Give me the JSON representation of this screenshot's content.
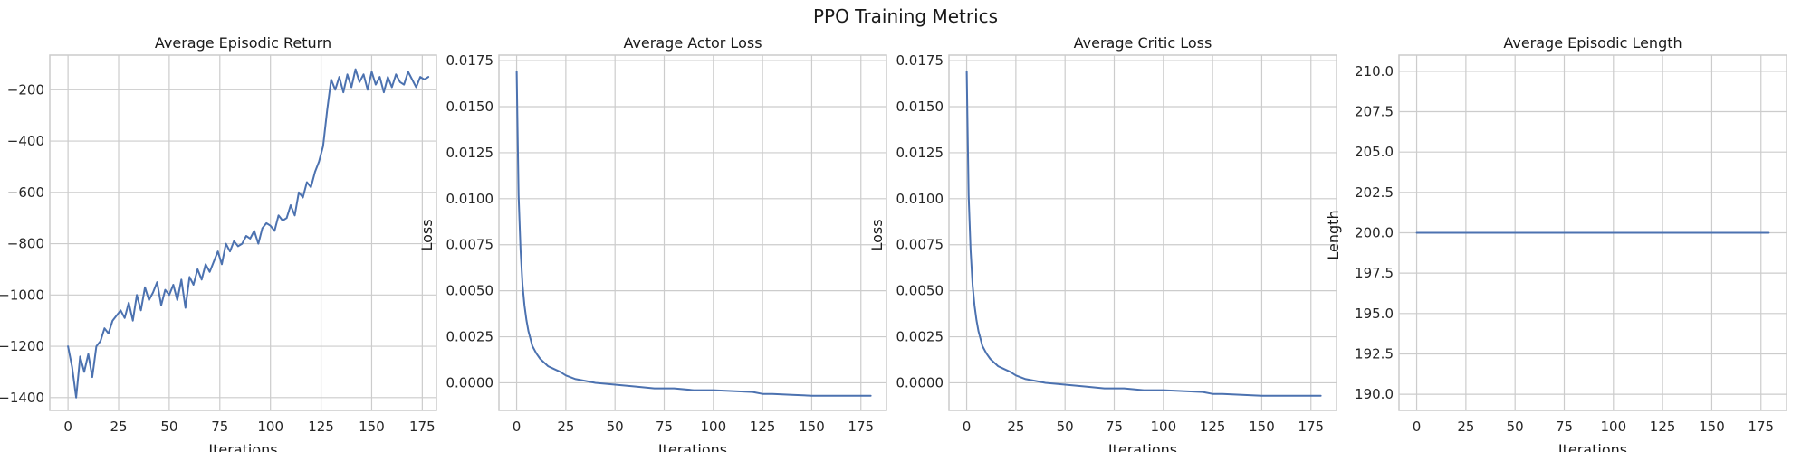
{
  "figure": {
    "title": "PPO Training Metrics",
    "line_color": "#4c72b0",
    "grid_color": "#cccccc"
  },
  "chart_data": [
    {
      "type": "line",
      "title": "Average Episodic Return",
      "xlabel": "Iterations",
      "ylabel": "",
      "xlim": [
        -9,
        182
      ],
      "ylim": [
        -1450,
        -65
      ],
      "xticks": [
        0,
        25,
        50,
        75,
        100,
        125,
        150,
        175
      ],
      "yticks": [
        -1400,
        -1200,
        -1000,
        -800,
        -600,
        -400,
        -200
      ],
      "ytick_labels": [
        "−1400",
        "−1200",
        "−1000",
        "−800",
        "−600",
        "−400",
        "−200"
      ],
      "grid": true,
      "series": [
        {
          "x": [
            0,
            2,
            4,
            6,
            8,
            10,
            12,
            14,
            16,
            18,
            20,
            22,
            24,
            26,
            28,
            30,
            32,
            34,
            36,
            38,
            40,
            42,
            44,
            46,
            48,
            50,
            52,
            54,
            56,
            58,
            60,
            62,
            64,
            66,
            68,
            70,
            72,
            74,
            76,
            78,
            80,
            82,
            84,
            86,
            88,
            90,
            92,
            94,
            96,
            98,
            100,
            102,
            104,
            106,
            108,
            110,
            112,
            114,
            116,
            118,
            120,
            122,
            124,
            126,
            128,
            130,
            132,
            134,
            136,
            138,
            140,
            142,
            144,
            146,
            148,
            150,
            152,
            154,
            156,
            158,
            160,
            162,
            164,
            166,
            168,
            170,
            172,
            174,
            176,
            178
          ],
          "y": [
            -1200,
            -1280,
            -1400,
            -1240,
            -1300,
            -1230,
            -1320,
            -1200,
            -1180,
            -1130,
            -1150,
            -1100,
            -1080,
            -1060,
            -1090,
            -1030,
            -1100,
            -1000,
            -1060,
            -970,
            -1020,
            -990,
            -950,
            -1040,
            -980,
            -1000,
            -960,
            -1020,
            -940,
            -1050,
            -930,
            -960,
            -900,
            -940,
            -880,
            -910,
            -870,
            -830,
            -880,
            -800,
            -830,
            -790,
            -810,
            -800,
            -770,
            -780,
            -750,
            -800,
            -740,
            -720,
            -730,
            -750,
            -690,
            -710,
            -700,
            -650,
            -690,
            -600,
            -620,
            -560,
            -580,
            -520,
            -480,
            -420,
            -280,
            -160,
            -200,
            -150,
            -210,
            -140,
            -190,
            -120,
            -170,
            -140,
            -200,
            -130,
            -180,
            -150,
            -210,
            -150,
            -190,
            -140,
            -170,
            -180,
            -130,
            -160,
            -190,
            -150,
            -160,
            -150
          ]
        }
      ]
    },
    {
      "type": "line",
      "title": "Average Actor Loss",
      "xlabel": "Iterations",
      "ylabel": "Loss",
      "xlim": [
        -9,
        188
      ],
      "ylim": [
        -0.0015,
        0.0178
      ],
      "xticks": [
        0,
        25,
        50,
        75,
        100,
        125,
        150,
        175
      ],
      "yticks": [
        0,
        0.0025,
        0.005,
        0.0075,
        0.01,
        0.0125,
        0.015,
        0.0175
      ],
      "ytick_labels": [
        "0.0000",
        "0.0025",
        "0.0050",
        "0.0075",
        "0.0100",
        "0.0125",
        "0.0150",
        "0.0175"
      ],
      "grid": true,
      "series": [
        {
          "x": [
            0,
            1,
            2,
            3,
            4,
            5,
            6,
            7,
            8,
            9,
            10,
            12,
            14,
            16,
            18,
            20,
            22,
            25,
            30,
            35,
            40,
            50,
            60,
            70,
            80,
            90,
            100,
            110,
            120,
            125,
            130,
            140,
            150,
            160,
            170,
            175,
            180
          ],
          "y": [
            0.0169,
            0.0102,
            0.0072,
            0.0053,
            0.0042,
            0.0034,
            0.0028,
            0.0024,
            0.002,
            0.0018,
            0.0016,
            0.0013,
            0.0011,
            0.0009,
            0.0008,
            0.0007,
            0.0006,
            0.0004,
            0.0002,
            0.0001,
            0.0,
            -0.0001,
            -0.0002,
            -0.0003,
            -0.0003,
            -0.0004,
            -0.0004,
            -0.00045,
            -0.0005,
            -0.0006,
            -0.0006,
            -0.00065,
            -0.0007,
            -0.0007,
            -0.0007,
            -0.0007,
            -0.0007
          ]
        }
      ]
    },
    {
      "type": "line",
      "title": "Average Critic Loss",
      "xlabel": "Iterations",
      "ylabel": "Loss",
      "xlim": [
        -9,
        188
      ],
      "ylim": [
        -0.0015,
        0.0178
      ],
      "xticks": [
        0,
        25,
        50,
        75,
        100,
        125,
        150,
        175
      ],
      "yticks": [
        0,
        0.0025,
        0.005,
        0.0075,
        0.01,
        0.0125,
        0.015,
        0.0175
      ],
      "ytick_labels": [
        "0.0000",
        "0.0025",
        "0.0050",
        "0.0075",
        "0.0100",
        "0.0125",
        "0.0150",
        "0.0175"
      ],
      "grid": true,
      "series": [
        {
          "x": [
            0,
            1,
            2,
            3,
            4,
            5,
            6,
            7,
            8,
            9,
            10,
            12,
            14,
            16,
            18,
            20,
            22,
            25,
            30,
            35,
            40,
            50,
            60,
            70,
            80,
            90,
            100,
            110,
            120,
            125,
            130,
            140,
            150,
            160,
            170,
            175,
            180
          ],
          "y": [
            0.0169,
            0.0102,
            0.0072,
            0.0053,
            0.0042,
            0.0034,
            0.0028,
            0.0024,
            0.002,
            0.0018,
            0.0016,
            0.0013,
            0.0011,
            0.0009,
            0.0008,
            0.0007,
            0.0006,
            0.0004,
            0.0002,
            0.0001,
            0.0,
            -0.0001,
            -0.0002,
            -0.0003,
            -0.0003,
            -0.0004,
            -0.0004,
            -0.00045,
            -0.0005,
            -0.0006,
            -0.0006,
            -0.00065,
            -0.0007,
            -0.0007,
            -0.0007,
            -0.0007,
            -0.0007
          ]
        }
      ]
    },
    {
      "type": "line",
      "title": "Average Episodic Length",
      "xlabel": "Iterations",
      "ylabel": "Length",
      "xlim": [
        -9,
        188
      ],
      "ylim": [
        189,
        211
      ],
      "xticks": [
        0,
        25,
        50,
        75,
        100,
        125,
        150,
        175
      ],
      "yticks": [
        190,
        192.5,
        195,
        197.5,
        200,
        202.5,
        205,
        207.5,
        210
      ],
      "ytick_labels": [
        "190.0",
        "192.5",
        "195.0",
        "197.5",
        "200.0",
        "202.5",
        "205.0",
        "207.5",
        "210.0"
      ],
      "grid": true,
      "series": [
        {
          "x": [
            0,
            179
          ],
          "y": [
            200,
            200
          ]
        }
      ]
    }
  ]
}
